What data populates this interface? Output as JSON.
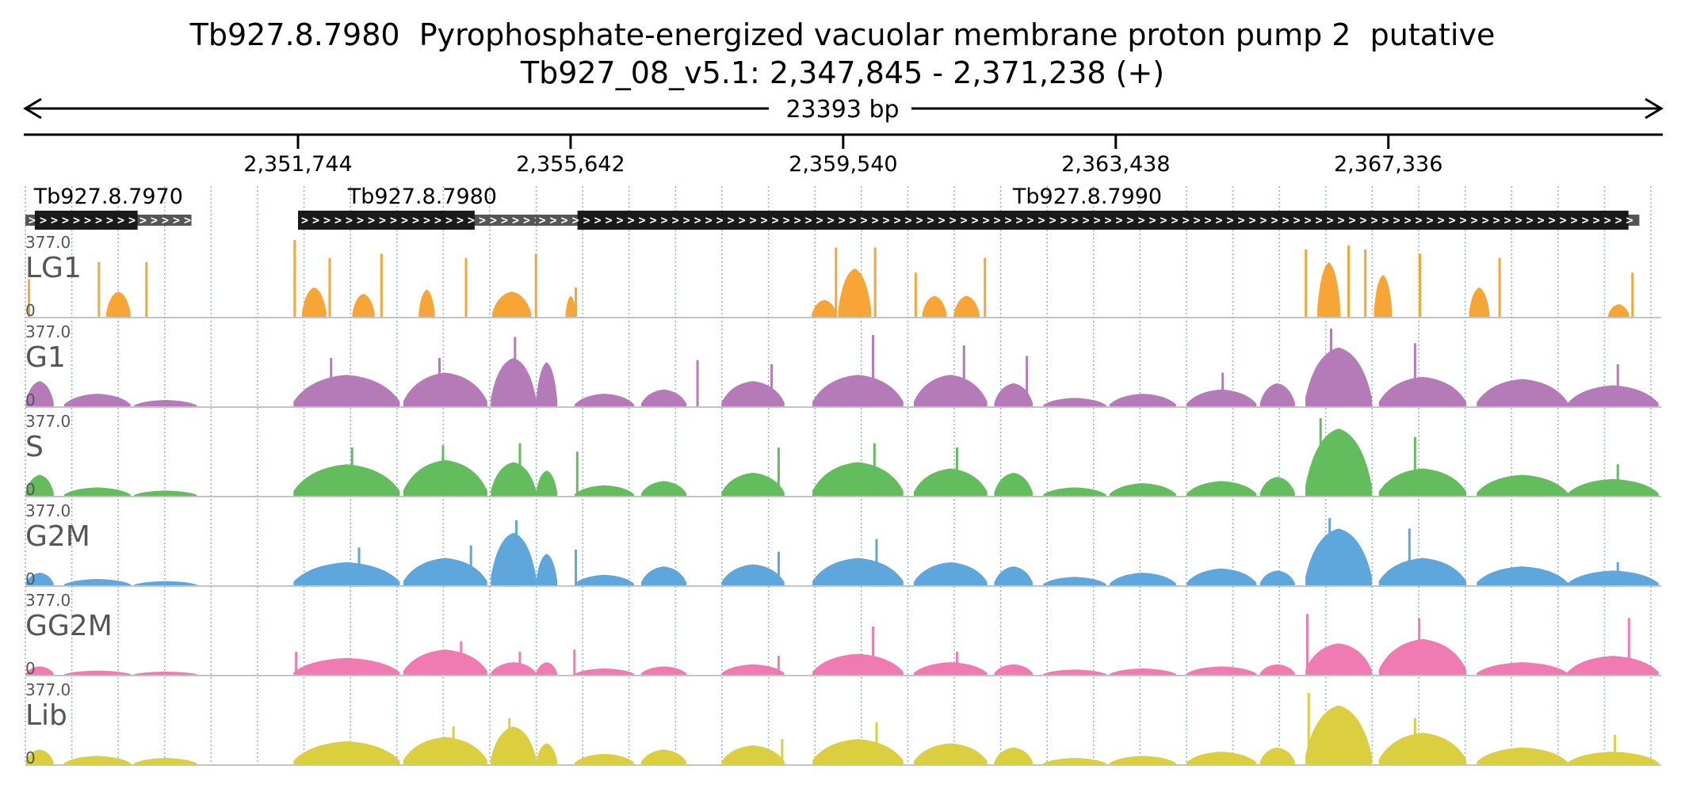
{
  "title": "Tb927.8.7980  Pyrophosphate-energized vacuolar membrane proton pump 2  putative",
  "subtitle": "Tb927_08_v5.1: 2,347,845 - 2,371,238 (+)",
  "span_label": "23393 bp",
  "region": {
    "start": 2347845,
    "end": 2371238
  },
  "ticks": [
    {
      "pos": 2351744,
      "label": "2,351,744"
    },
    {
      "pos": 2355642,
      "label": "2,355,642"
    },
    {
      "pos": 2359540,
      "label": "2,359,540"
    },
    {
      "pos": 2363438,
      "label": "2,363,438"
    },
    {
      "pos": 2367336,
      "label": "2,367,336"
    }
  ],
  "genes": [
    {
      "name": "Tb927.8.7970",
      "start": 2347845,
      "end": 2350220,
      "cds_start": 2347980,
      "cds_end": 2349450
    },
    {
      "name": "Tb927.8.7980",
      "start": 2351744,
      "end": 2355300,
      "cds_start": 2351744,
      "cds_end": 2354270
    },
    {
      "name": "Tb927.8.7990",
      "start": 2355140,
      "end": 2370925,
      "cds_start": 2355740,
      "cds_end": 2370770
    }
  ],
  "colors": {
    "LG1": "#f7a535",
    "G1": "#b57bb9",
    "S": "#63bd5d",
    "G2M": "#5ea7dd",
    "GG2M": "#f07bb2",
    "Lib": "#dccf3f",
    "gene_cds": "#1a1a1a",
    "gene_utr": "#555555",
    "gridline": "#8ab4dd"
  },
  "chart_data": {
    "type": "area",
    "x_unit": "bp",
    "xlim": [
      2347845,
      2371238
    ],
    "ylim": [
      0,
      377.0
    ],
    "tracks": [
      {
        "name": "LG1",
        "max_label": "377.0",
        "min_label": "0",
        "peaks": [
          [
            2347880,
            2347920,
            180
          ],
          [
            2349000,
            2349350,
            120
          ],
          [
            2348880,
            2348900,
            260
          ],
          [
            2349560,
            2349580,
            260
          ],
          [
            2351680,
            2351700,
            365
          ],
          [
            2351800,
            2352150,
            140
          ],
          [
            2352180,
            2352200,
            280
          ],
          [
            2352520,
            2352840,
            110
          ],
          [
            2352920,
            2352940,
            300
          ],
          [
            2353470,
            2353700,
            130
          ],
          [
            2354130,
            2354150,
            280
          ],
          [
            2354520,
            2355080,
            120
          ],
          [
            2355130,
            2355150,
            300
          ],
          [
            2355570,
            2355720,
            100
          ],
          [
            2355700,
            2355720,
            140
          ],
          [
            2359090,
            2359450,
            80
          ],
          [
            2359420,
            2359440,
            330
          ],
          [
            2359470,
            2359940,
            230
          ],
          [
            2359980,
            2360000,
            330
          ],
          [
            2360560,
            2360580,
            210
          ],
          [
            2360670,
            2361020,
            100
          ],
          [
            2361120,
            2361490,
            100
          ],
          [
            2361550,
            2361570,
            280
          ],
          [
            2366140,
            2366160,
            320
          ],
          [
            2366320,
            2366650,
            260
          ],
          [
            2366750,
            2366770,
            340
          ],
          [
            2366990,
            2367010,
            320
          ],
          [
            2367130,
            2367390,
            200
          ],
          [
            2367770,
            2367790,
            300
          ],
          [
            2368490,
            2368780,
            140
          ],
          [
            2368910,
            2368930,
            280
          ],
          [
            2370480,
            2370780,
            60
          ],
          [
            2370810,
            2370830,
            210
          ]
        ]
      },
      {
        "name": "G1",
        "max_label": "377.0",
        "min_label": "0",
        "peaks": [
          [
            2347850,
            2348250,
            120
          ],
          [
            2348400,
            2349350,
            60
          ],
          [
            2349400,
            2350300,
            30
          ],
          [
            2351680,
            2353200,
            150
          ],
          [
            2352200,
            2352220,
            230
          ],
          [
            2353250,
            2354450,
            160
          ],
          [
            2353750,
            2353770,
            230
          ],
          [
            2354500,
            2355150,
            230
          ],
          [
            2354830,
            2354850,
            330
          ],
          [
            2355150,
            2355450,
            210
          ],
          [
            2355700,
            2356550,
            60
          ],
          [
            2356650,
            2357300,
            80
          ],
          [
            2357440,
            2357460,
            220
          ],
          [
            2357800,
            2358700,
            120
          ],
          [
            2358500,
            2358520,
            200
          ],
          [
            2359100,
            2360400,
            150
          ],
          [
            2359950,
            2359970,
            340
          ],
          [
            2360550,
            2361600,
            150
          ],
          [
            2361250,
            2361270,
            290
          ],
          [
            2361700,
            2362250,
            110
          ],
          [
            2362150,
            2362170,
            240
          ],
          [
            2362400,
            2363300,
            40
          ],
          [
            2363350,
            2364300,
            60
          ],
          [
            2364450,
            2365450,
            80
          ],
          [
            2364950,
            2364970,
            160
          ],
          [
            2365500,
            2366000,
            110
          ],
          [
            2366150,
            2367100,
            280
          ],
          [
            2366500,
            2366520,
            370
          ],
          [
            2367200,
            2368450,
            140
          ],
          [
            2367700,
            2367720,
            300
          ],
          [
            2368600,
            2369900,
            130
          ],
          [
            2369900,
            2371200,
            100
          ],
          [
            2370600,
            2370620,
            200
          ]
        ]
      },
      {
        "name": "S",
        "max_label": "377.0",
        "min_label": "0",
        "peaks": [
          [
            2347850,
            2348250,
            100
          ],
          [
            2348400,
            2349350,
            40
          ],
          [
            2349400,
            2350300,
            25
          ],
          [
            2351680,
            2353200,
            150
          ],
          [
            2352500,
            2352520,
            230
          ],
          [
            2353250,
            2354450,
            170
          ],
          [
            2353800,
            2353820,
            240
          ],
          [
            2354500,
            2355150,
            160
          ],
          [
            2354900,
            2354920,
            250
          ],
          [
            2355150,
            2355450,
            120
          ],
          [
            2355720,
            2355740,
            210
          ],
          [
            2355700,
            2356550,
            50
          ],
          [
            2356650,
            2357300,
            70
          ],
          [
            2357800,
            2358700,
            110
          ],
          [
            2358600,
            2358620,
            230
          ],
          [
            2359100,
            2360400,
            160
          ],
          [
            2359970,
            2359990,
            250
          ],
          [
            2360550,
            2361600,
            130
          ],
          [
            2361150,
            2361170,
            230
          ],
          [
            2361700,
            2362250,
            110
          ],
          [
            2362400,
            2363300,
            40
          ],
          [
            2363350,
            2364300,
            60
          ],
          [
            2364450,
            2365450,
            70
          ],
          [
            2365500,
            2366000,
            90
          ],
          [
            2366150,
            2367100,
            320
          ],
          [
            2366350,
            2366370,
            370
          ],
          [
            2367200,
            2368450,
            130
          ],
          [
            2367700,
            2367720,
            280
          ],
          [
            2368600,
            2369900,
            100
          ],
          [
            2369900,
            2371200,
            80
          ],
          [
            2370600,
            2370620,
            150
          ]
        ]
      },
      {
        "name": "G2M",
        "max_label": "377.0",
        "min_label": "0",
        "peaks": [
          [
            2347850,
            2348250,
            60
          ],
          [
            2348400,
            2349350,
            30
          ],
          [
            2349400,
            2350300,
            20
          ],
          [
            2351680,
            2353200,
            110
          ],
          [
            2352600,
            2352620,
            180
          ],
          [
            2353250,
            2354450,
            130
          ],
          [
            2354200,
            2354220,
            190
          ],
          [
            2354500,
            2355150,
            250
          ],
          [
            2354850,
            2354870,
            310
          ],
          [
            2355150,
            2355450,
            150
          ],
          [
            2355700,
            2355720,
            170
          ],
          [
            2355700,
            2356550,
            50
          ],
          [
            2356650,
            2357300,
            90
          ],
          [
            2357800,
            2358700,
            100
          ],
          [
            2358600,
            2358620,
            160
          ],
          [
            2359100,
            2360400,
            130
          ],
          [
            2360000,
            2360020,
            220
          ],
          [
            2360550,
            2361600,
            110
          ],
          [
            2361700,
            2362250,
            90
          ],
          [
            2362400,
            2363300,
            40
          ],
          [
            2363350,
            2364300,
            60
          ],
          [
            2364450,
            2365450,
            80
          ],
          [
            2365500,
            2366000,
            70
          ],
          [
            2366150,
            2367100,
            270
          ],
          [
            2366480,
            2366500,
            320
          ],
          [
            2367200,
            2368450,
            130
          ],
          [
            2367620,
            2367640,
            270
          ],
          [
            2368600,
            2369900,
            90
          ],
          [
            2369900,
            2371200,
            70
          ],
          [
            2370600,
            2370620,
            110
          ]
        ]
      },
      {
        "name": "GG2M",
        "max_label": "377.0",
        "min_label": "0",
        "peaks": [
          [
            2347850,
            2348250,
            40
          ],
          [
            2348400,
            2349350,
            20
          ],
          [
            2349400,
            2350300,
            15
          ],
          [
            2351680,
            2353200,
            80
          ],
          [
            2351700,
            2351720,
            110
          ],
          [
            2353250,
            2354450,
            120
          ],
          [
            2354060,
            2354080,
            160
          ],
          [
            2354500,
            2355150,
            60
          ],
          [
            2354900,
            2354920,
            110
          ],
          [
            2355150,
            2355450,
            60
          ],
          [
            2355680,
            2355700,
            120
          ],
          [
            2355700,
            2356550,
            30
          ],
          [
            2356650,
            2357300,
            40
          ],
          [
            2357800,
            2358700,
            50
          ],
          [
            2358600,
            2358620,
            90
          ],
          [
            2359100,
            2360400,
            100
          ],
          [
            2359950,
            2359970,
            230
          ],
          [
            2360550,
            2361600,
            60
          ],
          [
            2361150,
            2361170,
            110
          ],
          [
            2361700,
            2362250,
            50
          ],
          [
            2362400,
            2363300,
            25
          ],
          [
            2363350,
            2364300,
            30
          ],
          [
            2364450,
            2365450,
            40
          ],
          [
            2365500,
            2366000,
            50
          ],
          [
            2366150,
            2367100,
            150
          ],
          [
            2366160,
            2366180,
            290
          ],
          [
            2367200,
            2368450,
            170
          ],
          [
            2367760,
            2367780,
            270
          ],
          [
            2368600,
            2369900,
            60
          ],
          [
            2369900,
            2371200,
            90
          ],
          [
            2370760,
            2370780,
            270
          ]
        ]
      },
      {
        "name": "Lib",
        "max_label": "377.0",
        "min_label": "0",
        "peaks": [
          [
            2347850,
            2348250,
            70
          ],
          [
            2348400,
            2349350,
            40
          ],
          [
            2349400,
            2350300,
            30
          ],
          [
            2351680,
            2353200,
            110
          ],
          [
            2353250,
            2354450,
            130
          ],
          [
            2353950,
            2353970,
            180
          ],
          [
            2354500,
            2355150,
            180
          ],
          [
            2354750,
            2354770,
            220
          ],
          [
            2355150,
            2355450,
            100
          ],
          [
            2355700,
            2356550,
            50
          ],
          [
            2356650,
            2357300,
            70
          ],
          [
            2357800,
            2358700,
            90
          ],
          [
            2358650,
            2358670,
            120
          ],
          [
            2359100,
            2360400,
            120
          ],
          [
            2360000,
            2360020,
            200
          ],
          [
            2360550,
            2361600,
            100
          ],
          [
            2361700,
            2362250,
            80
          ],
          [
            2362400,
            2363300,
            30
          ],
          [
            2363350,
            2364300,
            40
          ],
          [
            2364450,
            2365450,
            60
          ],
          [
            2365500,
            2366000,
            80
          ],
          [
            2366150,
            2367100,
            280
          ],
          [
            2366180,
            2366200,
            340
          ],
          [
            2367200,
            2368450,
            150
          ],
          [
            2367700,
            2367720,
            220
          ],
          [
            2368600,
            2369900,
            80
          ],
          [
            2369900,
            2371200,
            60
          ],
          [
            2370560,
            2370580,
            140
          ]
        ]
      }
    ]
  }
}
